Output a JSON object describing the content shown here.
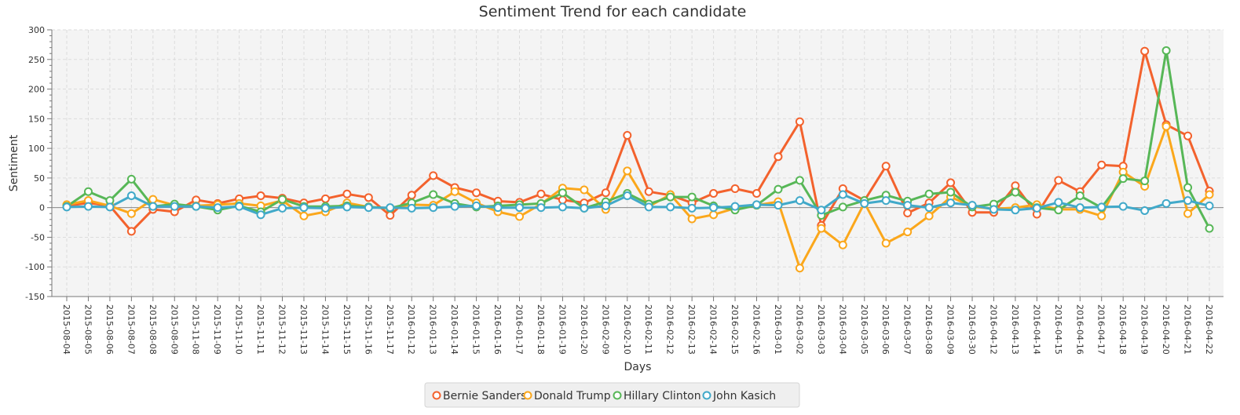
{
  "chart_data": {
    "type": "line",
    "title": "Sentiment Trend for each candidate",
    "xlabel": "Days",
    "ylabel": "Sentiment",
    "ylim": [
      -150,
      300
    ],
    "yticks": [
      -150,
      -100,
      -50,
      0,
      50,
      100,
      150,
      200,
      250,
      300
    ],
    "grid": true,
    "legend_position": "bottom",
    "x": [
      "2015-08-04",
      "2015-08-05",
      "2015-08-06",
      "2015-08-07",
      "2015-08-08",
      "2015-08-09",
      "2015-11-08",
      "2015-11-09",
      "2015-11-10",
      "2015-11-11",
      "2015-11-12",
      "2015-11-13",
      "2015-11-14",
      "2015-11-15",
      "2015-11-16",
      "2015-11-17",
      "2016-01-12",
      "2016-01-13",
      "2016-01-14",
      "2016-01-15",
      "2016-01-16",
      "2016-01-17",
      "2016-01-18",
      "2016-01-19",
      "2016-01-20",
      "2016-02-09",
      "2016-02-10",
      "2016-02-11",
      "2016-02-12",
      "2016-02-13",
      "2016-02-14",
      "2016-02-15",
      "2016-02-16",
      "2016-03-01",
      "2016-03-02",
      "2016-03-03",
      "2016-03-04",
      "2016-03-05",
      "2016-03-06",
      "2016-03-07",
      "2016-03-08",
      "2016-03-09",
      "2016-03-30",
      "2016-04-12",
      "2016-04-13",
      "2016-04-14",
      "2016-04-15",
      "2016-04-16",
      "2016-04-17",
      "2016-04-18",
      "2016-04-19",
      "2016-04-20",
      "2016-04-21",
      "2016-04-22"
    ],
    "series": [
      {
        "name": "Bernie Sanders",
        "color": "#f3622d",
        "values": [
          3,
          8,
          3,
          -40,
          -3,
          -7,
          13,
          7,
          15,
          20,
          16,
          8,
          15,
          23,
          17,
          -13,
          21,
          54,
          34,
          25,
          11,
          9,
          23,
          13,
          8,
          25,
          122,
          27,
          21,
          8,
          24,
          32,
          24,
          86,
          145,
          -30,
          32,
          12,
          70,
          -9,
          8,
          42,
          -8,
          -8,
          37,
          -11,
          46,
          27,
          72,
          70,
          264,
          140,
          121,
          28
        ]
      },
      {
        "name": "Donald Trump",
        "color": "#fba71b",
        "values": [
          5,
          12,
          3,
          -10,
          14,
          4,
          3,
          5,
          7,
          3,
          12,
          -14,
          -7,
          8,
          1,
          -1,
          5,
          4,
          27,
          8,
          -7,
          -15,
          6,
          33,
          30,
          -3,
          62,
          2,
          22,
          -19,
          -12,
          -1,
          4,
          10,
          -102,
          -35,
          -63,
          8,
          -60,
          -41,
          -14,
          18,
          2,
          -2,
          0,
          5,
          -3,
          -3,
          -14,
          60,
          36,
          137,
          -10,
          22
        ]
      },
      {
        "name": "Hillary Clinton",
        "color": "#57b757",
        "values": [
          2,
          27,
          12,
          48,
          2,
          6,
          2,
          -4,
          3,
          -7,
          14,
          2,
          2,
          3,
          1,
          -1,
          8,
          22,
          7,
          1,
          3,
          5,
          7,
          25,
          -1,
          10,
          24,
          6,
          18,
          18,
          3,
          -4,
          4,
          31,
          46,
          -13,
          1,
          12,
          21,
          11,
          23,
          26,
          1,
          6,
          26,
          0,
          -4,
          20,
          0,
          49,
          45,
          265,
          34,
          -35
        ]
      },
      {
        "name": "John Kasich",
        "color": "#41a9c9",
        "values": [
          1,
          2,
          1,
          20,
          2,
          2,
          2,
          0,
          2,
          -12,
          -1,
          0,
          -1,
          1,
          0,
          0,
          -1,
          0,
          2,
          3,
          0,
          0,
          0,
          1,
          -1,
          3,
          20,
          1,
          1,
          -1,
          0,
          2,
          5,
          4,
          12,
          -4,
          22,
          7,
          12,
          4,
          0,
          8,
          4,
          -3,
          -4,
          -1,
          9,
          0,
          1,
          2,
          -5,
          7,
          12,
          3
        ]
      }
    ]
  }
}
